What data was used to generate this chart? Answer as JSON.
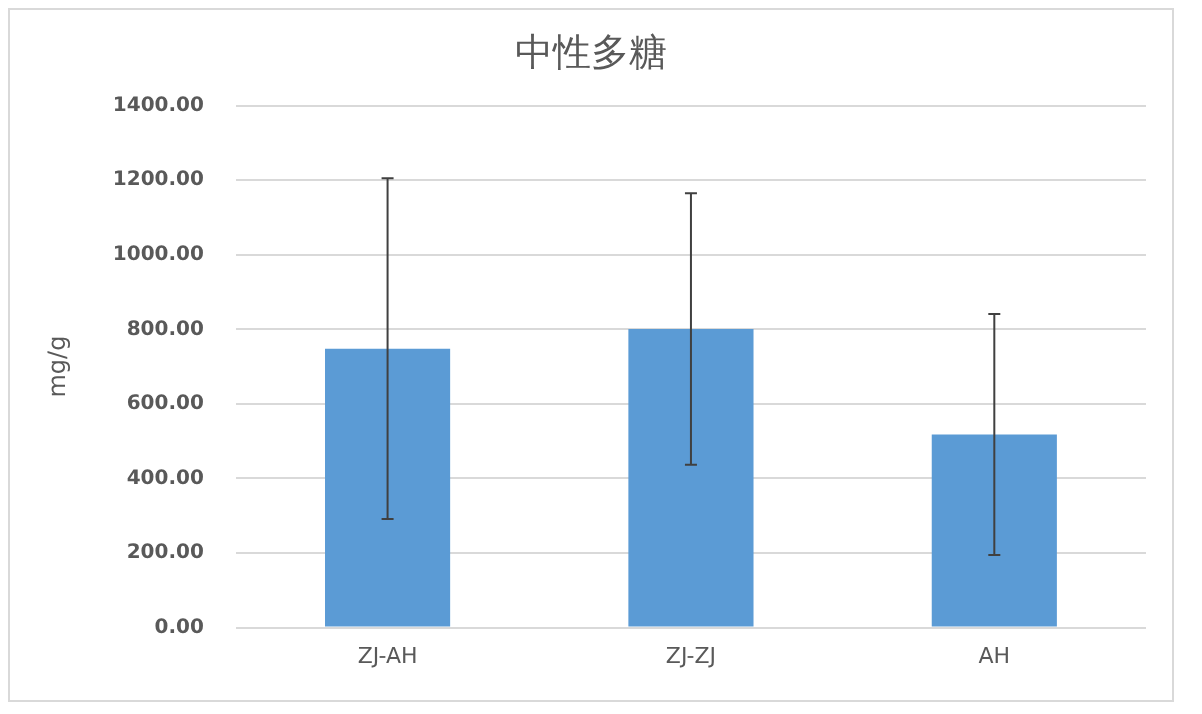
{
  "chart_data": {
    "type": "bar",
    "title": "中性多糖",
    "ylabel": "mg/g",
    "categories": [
      "ZJ-AH",
      "ZJ-ZJ",
      "AH"
    ],
    "values": [
      748,
      801,
      518
    ],
    "errors": [
      457,
      364,
      323
    ],
    "color": "#5b9bd5",
    "ylim": [
      0,
      1400
    ],
    "yticks": [
      {
        "value": 0,
        "label": "0.00"
      },
      {
        "value": 200,
        "label": "200.00"
      },
      {
        "value": 400,
        "label": "400.00"
      },
      {
        "value": 600,
        "label": "600.00"
      },
      {
        "value": 800,
        "label": "800.00"
      },
      {
        "value": 1000,
        "label": "1000.00"
      },
      {
        "value": 1200,
        "label": "1200.00"
      },
      {
        "value": 1400,
        "label": "1400.00"
      }
    ],
    "grid": "y",
    "legend": false
  }
}
